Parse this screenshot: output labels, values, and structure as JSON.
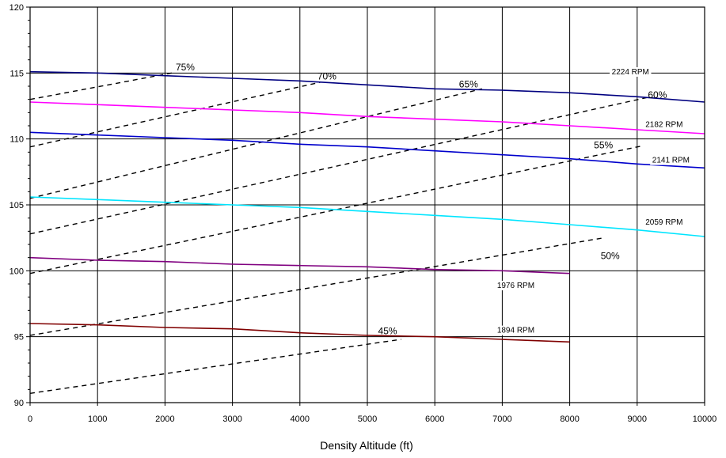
{
  "chart_data": {
    "type": "line",
    "title": "",
    "xlabel": "Density Altitude (ft)",
    "ylabel": "",
    "xlim": [
      0,
      10000
    ],
    "ylim": [
      90,
      120
    ],
    "x_ticks": [
      0,
      1000,
      2000,
      3000,
      4000,
      5000,
      6000,
      7000,
      8000,
      9000,
      10000
    ],
    "y_ticks": [
      90,
      95,
      100,
      105,
      110,
      115,
      120
    ],
    "grid": true,
    "legend": "none",
    "rpm_series": [
      {
        "name": "2224 RPM",
        "color": "#000080",
        "x": [
          0,
          1000,
          2000,
          3000,
          4000,
          5000,
          6000,
          7000,
          8000,
          9000,
          10000
        ],
        "y": [
          115.1,
          115.0,
          114.8,
          114.6,
          114.4,
          114.1,
          113.8,
          113.7,
          113.5,
          113.2,
          112.8
        ]
      },
      {
        "name": "2182 RPM",
        "color": "#ff00ff",
        "x": [
          0,
          1000,
          2000,
          3000,
          4000,
          5000,
          6000,
          7000,
          8000,
          9000,
          10000
        ],
        "y": [
          112.8,
          112.6,
          112.4,
          112.2,
          112.0,
          111.7,
          111.5,
          111.3,
          111.0,
          110.7,
          110.4
        ]
      },
      {
        "name": "2141 RPM",
        "color": "#0000cc",
        "x": [
          0,
          1000,
          2000,
          3000,
          4000,
          5000,
          6000,
          7000,
          8000,
          9000,
          10000
        ],
        "y": [
          110.5,
          110.3,
          110.1,
          109.9,
          109.6,
          109.4,
          109.1,
          108.8,
          108.5,
          108.1,
          107.8
        ]
      },
      {
        "name": "2059 RPM",
        "color": "#00e5ff",
        "x": [
          0,
          1000,
          2000,
          3000,
          4000,
          5000,
          6000,
          7000,
          8000,
          9000,
          10000
        ],
        "y": [
          105.6,
          105.4,
          105.2,
          105.0,
          104.8,
          104.5,
          104.2,
          103.9,
          103.5,
          103.1,
          102.6
        ]
      },
      {
        "name": "1976 RPM",
        "color": "#800080",
        "x": [
          0,
          1000,
          2000,
          3000,
          4000,
          5000,
          6000,
          7000,
          8000
        ],
        "y": [
          101.0,
          100.8,
          100.7,
          100.5,
          100.4,
          100.3,
          100.1,
          100.0,
          99.8
        ]
      },
      {
        "name": "1894 RPM",
        "color": "#800000",
        "x": [
          0,
          1000,
          2000,
          3000,
          4000,
          5000,
          6000,
          7000,
          8000
        ],
        "y": [
          96.0,
          95.9,
          95.7,
          95.6,
          95.3,
          95.1,
          95.0,
          94.8,
          94.6
        ]
      }
    ],
    "power_series": [
      {
        "name": "75%",
        "x": [
          0,
          2100
        ],
        "y": [
          113.0,
          115.0
        ]
      },
      {
        "name": "70%",
        "x": [
          0,
          4300
        ],
        "y": [
          109.4,
          114.3
        ]
      },
      {
        "name": "65%",
        "x": [
          0,
          6700
        ],
        "y": [
          105.5,
          113.8
        ]
      },
      {
        "name": "60%",
        "x": [
          0,
          9200
        ],
        "y": [
          102.8,
          113.2
        ]
      },
      {
        "name": "55%",
        "x": [
          0,
          9100
        ],
        "y": [
          99.8,
          109.5
        ]
      },
      {
        "name": "50%",
        "x": [
          0,
          8500
        ],
        "y": [
          95.1,
          102.5
        ]
      },
      {
        "name": "45%",
        "x": [
          0,
          5500
        ],
        "y": [
          90.7,
          94.8
        ]
      }
    ],
    "rpm_labels": [
      {
        "text": "2224 RPM",
        "x": 8900,
        "y": 114.9
      },
      {
        "text": "2182 RPM",
        "x": 9400,
        "y": 110.9
      },
      {
        "text": "2141 RPM",
        "x": 9500,
        "y": 108.2
      },
      {
        "text": "2059 RPM",
        "x": 9400,
        "y": 103.5
      },
      {
        "text": "1976 RPM",
        "x": 7200,
        "y": 98.7
      },
      {
        "text": "1894 RPM",
        "x": 7200,
        "y": 95.3
      }
    ],
    "pct_labels": [
      {
        "text": "75%",
        "x": 2300,
        "y": 115.2
      },
      {
        "text": "70%",
        "x": 4400,
        "y": 114.5
      },
      {
        "text": "65%",
        "x": 6500,
        "y": 113.9
      },
      {
        "text": "60%",
        "x": 9300,
        "y": 113.1
      },
      {
        "text": "55%",
        "x": 8500,
        "y": 109.3
      },
      {
        "text": "50%",
        "x": 8600,
        "y": 100.9
      },
      {
        "text": "45%",
        "x": 5300,
        "y": 95.2
      }
    ]
  }
}
